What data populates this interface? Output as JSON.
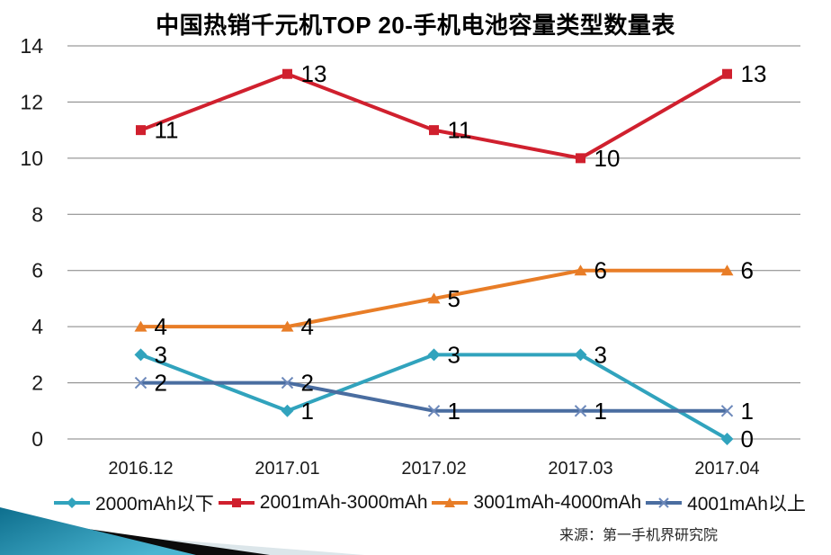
{
  "title": "中国热销千元机TOP 20-手机电池容量类型数量表",
  "source": "来源：第一手机界研究院",
  "chart_data": {
    "type": "line",
    "title": "中国热销千元机TOP 20-手机电池容量类型数量表",
    "categories": [
      "2016.12",
      "2017.01",
      "2017.02",
      "2017.03",
      "2017.04"
    ],
    "series": [
      {
        "name": "2000mAh以下",
        "values": [
          3,
          1,
          3,
          3,
          0
        ],
        "color": "#31a3bd",
        "marker": "diamond",
        "marker_color": "#31a3bd"
      },
      {
        "name": "2001mAh-3000mAh",
        "values": [
          11,
          13,
          11,
          10,
          13
        ],
        "color": "#d0202e",
        "marker": "square",
        "marker_color": "#d0202e"
      },
      {
        "name": "3001mAh-4000mAh",
        "values": [
          4,
          4,
          5,
          6,
          6
        ],
        "color": "#e87d27",
        "marker": "triangle",
        "marker_color": "#e87d27"
      },
      {
        "name": "4001mAh以上",
        "values": [
          2,
          2,
          1,
          1,
          1
        ],
        "color": "#4a6da0",
        "marker": "x",
        "marker_color": "#6c88ba"
      }
    ],
    "xlabel": "",
    "ylabel": "",
    "ylim": [
      0,
      14
    ],
    "ytick_step": 2,
    "grid": true,
    "data_labels": true,
    "legend_position": "bottom"
  },
  "colors": {
    "grid": "#808080",
    "data_label": "#000000",
    "axis_text": "#1a1a1a"
  }
}
